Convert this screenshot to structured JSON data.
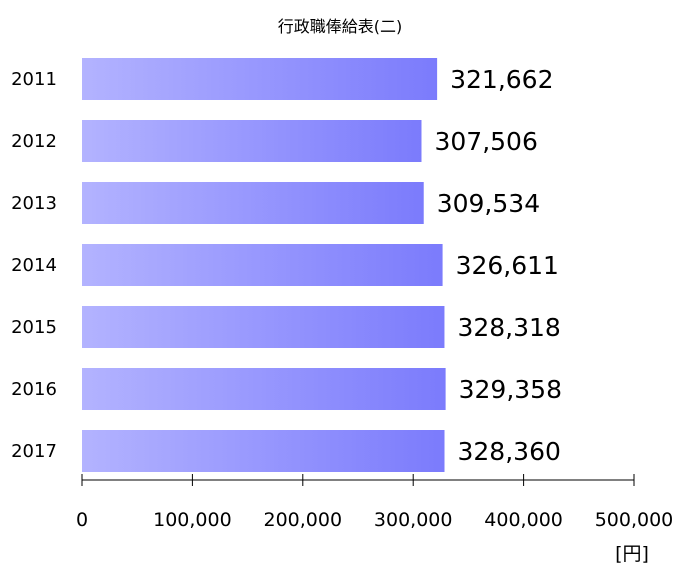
{
  "chart_data": {
    "type": "bar",
    "orientation": "horizontal",
    "title": "行政職俸給表(二)",
    "categories": [
      "2011",
      "2012",
      "2013",
      "2014",
      "2015",
      "2016",
      "2017"
    ],
    "values": [
      321662,
      307506,
      309534,
      326611,
      328318,
      329358,
      328360
    ],
    "value_labels": [
      "321,662",
      "307,506",
      "309,534",
      "326,611",
      "328,318",
      "329,358",
      "328,360"
    ],
    "xlim": [
      0,
      500000
    ],
    "x_ticks": [
      0,
      100000,
      200000,
      300000,
      400000,
      500000
    ],
    "x_tick_labels": [
      "0",
      "100,000",
      "200,000",
      "300,000",
      "400,000",
      "500,000"
    ],
    "unit_label": "[円]",
    "grid": false,
    "legend": "none",
    "bar_gradient": [
      "#b3b3ff",
      "#7b7bfc"
    ]
  }
}
